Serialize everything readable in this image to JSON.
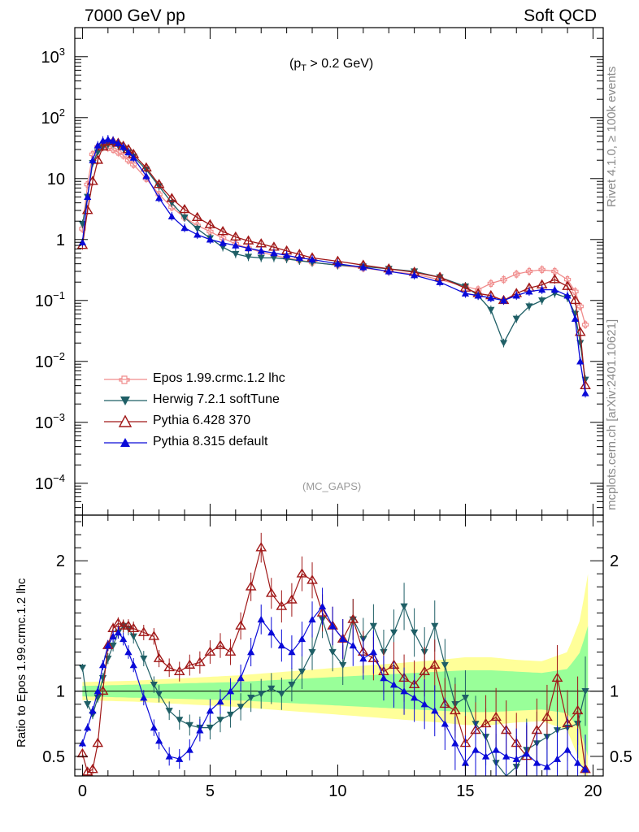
{
  "header": {
    "energy_label": "7000 GeV pp",
    "process_label": "Soft QCD"
  },
  "side_labels": {
    "rivet": "Rivet 4.1.0, ≥ 100k events",
    "mcplots": "mcplots.cern.ch [arXiv:2401.10621]"
  },
  "annotations": {
    "cut_prefix": "(p",
    "cut_sub": "T",
    "cut_suffix": " > 0.2 GeV)",
    "analysis": "(MC_GAPS)"
  },
  "legend": {
    "items": [
      {
        "label": "Epos 1.99.crmc.1.2 lhc",
        "color": "#f08c8c",
        "marker": "cross-open"
      },
      {
        "label": "Herwig 7.2.1 softTune",
        "color": "#1f5f66",
        "marker": "triangle-down"
      },
      {
        "label": "Pythia 6.428 370",
        "color": "#a01818",
        "marker": "triangle-up-open"
      },
      {
        "label": "Pythia 8.315 default",
        "color": "#0a0ad8",
        "marker": "triangle-up"
      }
    ]
  },
  "chart_data": [
    {
      "type": "line",
      "panel": "main",
      "title": "",
      "xlabel": "",
      "ylabel": "",
      "yscale": "log",
      "xlim": [
        -0.3,
        20.4
      ],
      "ylim": [
        3e-05,
        3000
      ],
      "y_ticks": [
        0.0001,
        0.001,
        0.01,
        0.1,
        1,
        10,
        100,
        1000
      ],
      "y_tick_labels": [
        {
          "base": "10",
          "exp": "−4"
        },
        {
          "base": "10",
          "exp": "−3"
        },
        {
          "base": "10",
          "exp": "−2"
        },
        {
          "base": "10",
          "exp": "−1"
        },
        {
          "base": "1",
          "exp": ""
        },
        {
          "base": "10",
          "exp": ""
        },
        {
          "base": "10",
          "exp": "2"
        },
        {
          "base": "10",
          "exp": "3"
        }
      ],
      "x": [
        0.0,
        0.2,
        0.4,
        0.6,
        0.8,
        1.0,
        1.2,
        1.4,
        1.6,
        1.8,
        2.0,
        2.5,
        3.0,
        3.5,
        4.0,
        4.5,
        5.0,
        5.5,
        6.0,
        6.5,
        7.0,
        7.5,
        8.0,
        8.5,
        9.0,
        10.0,
        11.0,
        12.0,
        13.0,
        14.0,
        15.0,
        15.5,
        16.0,
        16.5,
        17.0,
        17.5,
        18.0,
        18.5,
        19.0,
        19.3,
        19.5,
        19.7
      ],
      "series": [
        {
          "name": "Epos 1.99.crmc.1.2 lhc",
          "color": "#f08c8c",
          "marker": "cross-open",
          "values": [
            1.5,
            8.0,
            25.0,
            33.0,
            34.0,
            32.0,
            30.0,
            27.0,
            24.0,
            20.0,
            17.0,
            10.0,
            5.5,
            3.4,
            2.3,
            1.7,
            1.35,
            1.05,
            0.85,
            0.72,
            0.62,
            0.55,
            0.5,
            0.46,
            0.42,
            0.38,
            0.34,
            0.3,
            0.27,
            0.22,
            0.17,
            0.15,
            0.19,
            0.22,
            0.27,
            0.3,
            0.32,
            0.3,
            0.22,
            0.14,
            0.08,
            0.04
          ]
        },
        {
          "name": "Herwig 7.2.1 softTune",
          "color": "#1f5f66",
          "marker": "triangle-down",
          "values": [
            1.8,
            5.0,
            18.0,
            27.0,
            33.0,
            36.0,
            37.0,
            35.0,
            31.0,
            27.0,
            23.0,
            14.0,
            7.5,
            4.0,
            2.3,
            1.5,
            1.05,
            0.75,
            0.58,
            0.52,
            0.5,
            0.5,
            0.48,
            0.45,
            0.42,
            0.38,
            0.36,
            0.33,
            0.3,
            0.24,
            0.17,
            0.12,
            0.07,
            0.02,
            0.05,
            0.08,
            0.1,
            0.13,
            0.11,
            0.06,
            0.02,
            0.005
          ]
        },
        {
          "name": "Pythia 6.428 370",
          "color": "#a01818",
          "marker": "triangle-up-open",
          "values": [
            0.8,
            3.0,
            9.0,
            20.0,
            33.0,
            40.0,
            40.0,
            38.0,
            34.0,
            30.0,
            25.0,
            15.0,
            8.0,
            4.7,
            3.1,
            2.3,
            1.75,
            1.35,
            1.1,
            0.95,
            0.85,
            0.75,
            0.65,
            0.57,
            0.5,
            0.44,
            0.38,
            0.33,
            0.29,
            0.24,
            0.16,
            0.13,
            0.12,
            0.1,
            0.13,
            0.16,
            0.18,
            0.22,
            0.17,
            0.1,
            0.03,
            0.004
          ]
        },
        {
          "name": "Pythia 8.315 default",
          "color": "#0a0ad8",
          "marker": "triangle-up",
          "values": [
            0.9,
            5.0,
            20.0,
            35.0,
            42.0,
            44.0,
            42.0,
            38.0,
            33.0,
            27.0,
            22.0,
            11.0,
            4.8,
            2.4,
            1.55,
            1.2,
            1.0,
            0.88,
            0.8,
            0.72,
            0.65,
            0.6,
            0.55,
            0.5,
            0.47,
            0.4,
            0.35,
            0.3,
            0.26,
            0.2,
            0.13,
            0.12,
            0.11,
            0.1,
            0.12,
            0.14,
            0.15,
            0.15,
            0.12,
            0.05,
            0.01,
            0.003
          ]
        }
      ]
    },
    {
      "type": "line",
      "panel": "ratio",
      "title": "",
      "xlabel": "",
      "ylabel": "Ratio to Epos 1.99.crmc.1.2 lhc",
      "xlim": [
        -0.3,
        20.4
      ],
      "ylim": [
        0.35,
        2.35
      ],
      "x_ticks": [
        0,
        5,
        10,
        15,
        20
      ],
      "x_tick_labels": [
        "0",
        "5",
        "10",
        "15",
        "20"
      ],
      "y_ticks": [
        0.5,
        1,
        2
      ],
      "y_tick_labels": [
        "0.5",
        "1",
        "2"
      ],
      "band": {
        "x": [
          0.0,
          2.0,
          4.0,
          6.0,
          8.0,
          10.0,
          12.0,
          14.0,
          15.0,
          16.0,
          17.0,
          18.0,
          19.0,
          19.5,
          19.8
        ],
        "inner_halfwidth": [
          0.04,
          0.05,
          0.06,
          0.07,
          0.09,
          0.11,
          0.13,
          0.15,
          0.16,
          0.16,
          0.15,
          0.14,
          0.17,
          0.3,
          0.5
        ],
        "outer_halfwidth": [
          0.07,
          0.08,
          0.1,
          0.12,
          0.15,
          0.18,
          0.21,
          0.24,
          0.26,
          0.26,
          0.24,
          0.23,
          0.3,
          0.55,
          0.9
        ],
        "inner_color": "#99ff99",
        "outer_color": "#ffff99"
      },
      "x": [
        0.0,
        0.2,
        0.4,
        0.6,
        0.8,
        1.0,
        1.2,
        1.4,
        1.6,
        1.8,
        2.0,
        2.4,
        2.8,
        3.0,
        3.4,
        3.8,
        4.2,
        4.6,
        5.0,
        5.4,
        5.8,
        6.2,
        6.6,
        7.0,
        7.4,
        7.8,
        8.2,
        8.6,
        9.0,
        9.4,
        9.8,
        10.2,
        10.6,
        11.0,
        11.4,
        11.8,
        12.2,
        12.6,
        13.0,
        13.4,
        13.8,
        14.2,
        14.6,
        15.0,
        15.4,
        15.8,
        16.2,
        16.6,
        17.0,
        17.4,
        17.8,
        18.2,
        18.6,
        19.0,
        19.4,
        19.7
      ],
      "series": [
        {
          "name": "Herwig 7.2.1 softTune",
          "color": "#1f5f66",
          "marker": "triangle-down",
          "values": [
            1.18,
            0.9,
            0.82,
            0.95,
            1.1,
            1.25,
            1.35,
            1.45,
            1.5,
            1.48,
            1.42,
            1.25,
            1.05,
            0.98,
            0.85,
            0.78,
            0.74,
            0.72,
            0.72,
            0.78,
            0.82,
            0.88,
            0.95,
            0.98,
            1.02,
            0.98,
            1.05,
            1.15,
            1.3,
            1.55,
            1.3,
            1.2,
            1.55,
            1.4,
            1.5,
            1.3,
            1.45,
            1.65,
            1.45,
            1.3,
            1.5,
            1.2,
            0.9,
            0.95,
            0.75,
            0.65,
            0.45,
            0.3,
            0.42,
            0.55,
            0.6,
            0.65,
            0.7,
            0.72,
            0.75,
            1.0
          ]
        },
        {
          "name": "Pythia 6.428 370",
          "color": "#a01818",
          "marker": "triangle-up-open",
          "values": [
            0.52,
            0.38,
            0.4,
            0.6,
            1.0,
            1.35,
            1.48,
            1.52,
            1.5,
            1.5,
            1.48,
            1.45,
            1.42,
            1.25,
            1.18,
            1.15,
            1.2,
            1.22,
            1.3,
            1.35,
            1.3,
            1.5,
            1.8,
            2.1,
            1.75,
            1.65,
            1.7,
            1.9,
            1.85,
            1.6,
            1.5,
            1.4,
            1.55,
            1.3,
            1.25,
            1.15,
            1.2,
            1.1,
            1.05,
            1.15,
            1.2,
            0.9,
            0.85,
            0.6,
            0.7,
            0.75,
            0.8,
            0.7,
            0.6,
            0.5,
            0.7,
            0.8,
            1.1,
            0.75,
            0.85,
            0.4
          ]
        },
        {
          "name": "Pythia 8.315 default",
          "color": "#0a0ad8",
          "marker": "triangle-up",
          "values": [
            0.6,
            0.72,
            0.85,
            1.0,
            1.2,
            1.35,
            1.42,
            1.45,
            1.4,
            1.3,
            1.2,
            0.95,
            0.72,
            0.62,
            0.5,
            0.48,
            0.55,
            0.7,
            0.85,
            0.92,
            1.0,
            1.1,
            1.3,
            1.55,
            1.45,
            1.35,
            1.3,
            1.4,
            1.55,
            1.65,
            1.5,
            1.4,
            1.35,
            1.25,
            1.3,
            1.1,
            1.05,
            1.0,
            0.95,
            0.9,
            0.85,
            0.75,
            0.6,
            0.45,
            0.55,
            0.5,
            0.55,
            0.5,
            0.48,
            0.52,
            0.45,
            0.42,
            0.48,
            0.55,
            0.45,
            0.4
          ]
        }
      ]
    }
  ]
}
